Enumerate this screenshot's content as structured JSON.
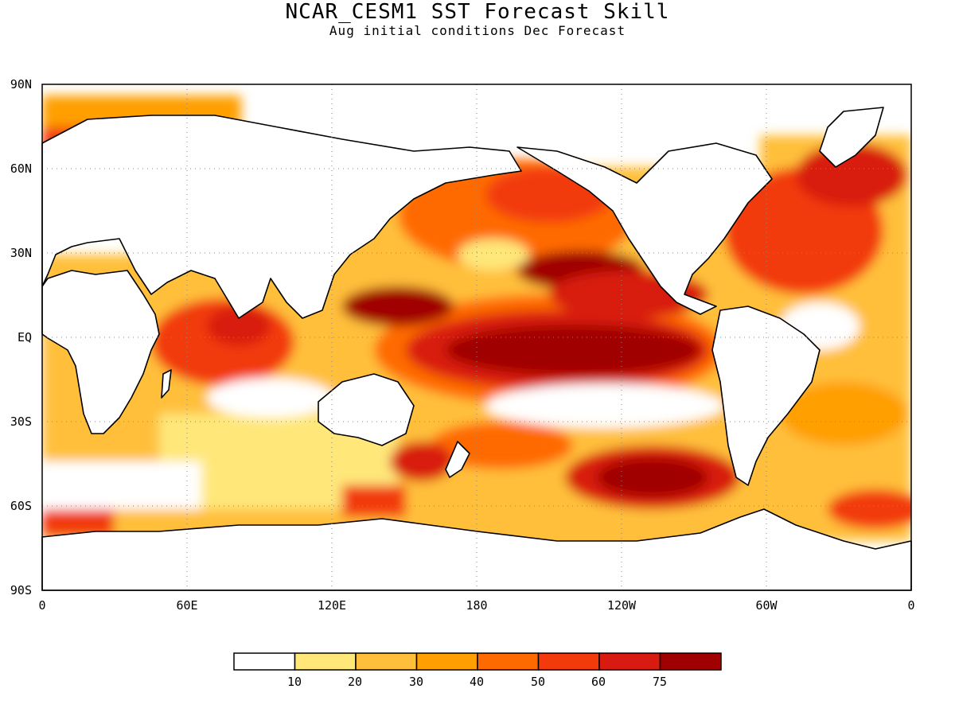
{
  "header": {
    "title": "NCAR_CESM1 SST Forecast Skill",
    "subtitle": "Aug initial conditions  Dec Forecast"
  },
  "map": {
    "projection": "equirectangular",
    "lon_range": [
      0,
      360
    ],
    "lat_range": [
      -90,
      90
    ],
    "lat_labels": [
      "90N",
      "60N",
      "30N",
      "EQ",
      "30S",
      "60S",
      "90S"
    ],
    "lon_labels": [
      "0",
      "60E",
      "120E",
      "180",
      "120W",
      "60W",
      "0"
    ],
    "gridlines": "dotted"
  },
  "legend": {
    "thresholds": [
      "10",
      "20",
      "30",
      "40",
      "50",
      "60",
      "75"
    ],
    "colors": [
      "#ffffff",
      "#ffe77a",
      "#ffbf3a",
      "#ff9f00",
      "#ff6a00",
      "#f23a0c",
      "#d81a10",
      "#a00000"
    ]
  }
}
